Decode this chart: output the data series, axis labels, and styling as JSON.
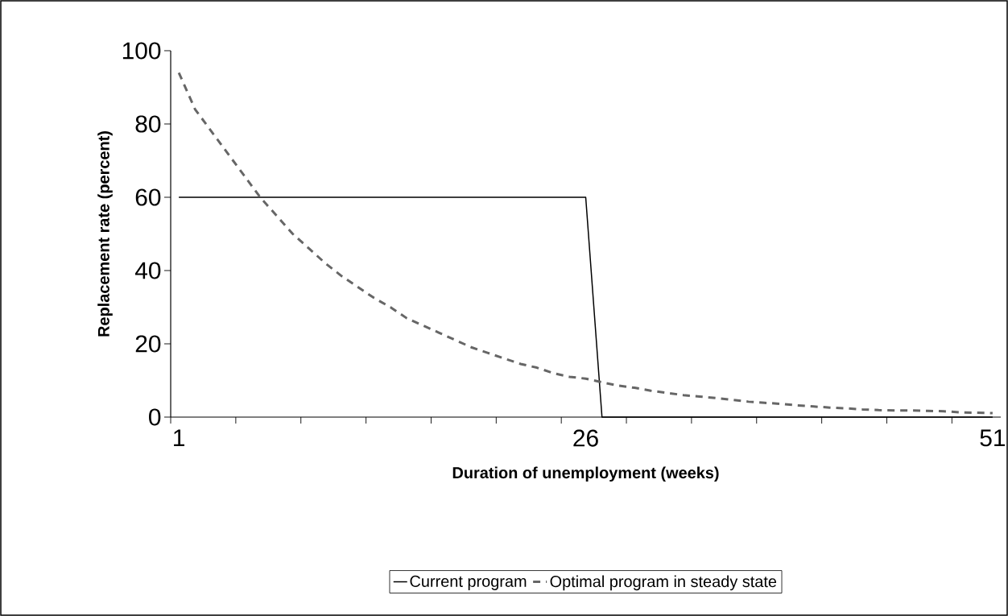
{
  "chart_data": {
    "type": "line",
    "xlabel": "Duration of unemployment (weeks)",
    "ylabel": "Replacement rate (percent)",
    "categories": [
      "1",
      null,
      null,
      null,
      null,
      null,
      null,
      null,
      null,
      null,
      null,
      null,
      null,
      null,
      null,
      null,
      null,
      null,
      null,
      null,
      null,
      null,
      null,
      null,
      null,
      "26",
      null,
      null,
      null,
      null,
      null,
      null,
      null,
      null,
      null,
      null,
      null,
      null,
      null,
      null,
      null,
      null,
      null,
      null,
      null,
      null,
      null,
      null,
      null,
      null,
      "51"
    ],
    "ylim": [
      0,
      100
    ],
    "yticks": [
      0,
      20,
      40,
      60,
      80,
      100
    ],
    "legend": "bottom",
    "series": [
      {
        "name": "Current program",
        "color": "#000000",
        "line_style": "solid",
        "values": [
          60,
          60,
          60,
          60,
          60,
          60,
          60,
          60,
          60,
          60,
          60,
          60,
          60,
          60,
          60,
          60,
          60,
          60,
          60,
          60,
          60,
          60,
          60,
          60,
          60,
          60,
          0,
          0,
          0,
          0,
          0,
          0,
          0,
          0,
          0,
          0,
          0,
          0,
          0,
          0,
          0,
          0,
          0,
          0,
          0,
          0,
          0,
          0,
          0,
          0,
          0
        ]
      },
      {
        "name": "Optimal program in steady state",
        "color": "#666666",
        "line_style": "dashed",
        "values": [
          94,
          84,
          78,
          72,
          66,
          60,
          55,
          50,
          46,
          42,
          38.5,
          35.5,
          32.5,
          30,
          27,
          25,
          23,
          21,
          19,
          17.5,
          16,
          14.5,
          13.5,
          12,
          11,
          10.5,
          9.5,
          8.6,
          8,
          7.2,
          6.6,
          6,
          5.6,
          5.2,
          4.7,
          4.2,
          3.9,
          3.6,
          3.2,
          2.9,
          2.6,
          2.4,
          2.1,
          1.9,
          1.8,
          1.8,
          1.7,
          1.6,
          1.3,
          1.2,
          1.1
        ]
      }
    ]
  }
}
